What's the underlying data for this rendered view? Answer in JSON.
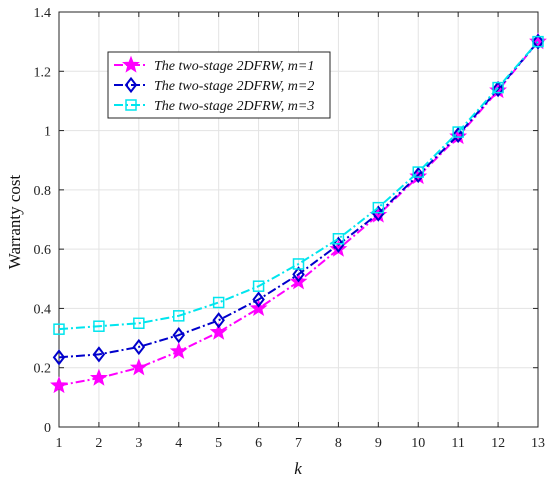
{
  "chart_data": {
    "type": "line",
    "title": "",
    "xlabel": "k",
    "ylabel": "Warranty cost",
    "x": [
      1,
      2,
      3,
      4,
      5,
      6,
      7,
      8,
      9,
      10,
      11,
      12,
      13
    ],
    "xlim": [
      1,
      13
    ],
    "ylim": [
      0,
      1.4
    ],
    "xticks": [
      "1",
      "2",
      "3",
      "4",
      "5",
      "6",
      "7",
      "8",
      "9",
      "10",
      "11",
      "12",
      "13"
    ],
    "yticks": [
      "0",
      "0.2",
      "0.4",
      "0.6",
      "0.8",
      "1",
      "1.2",
      "1.4"
    ],
    "grid": true,
    "legend_position": "upper-left",
    "series": [
      {
        "name": "The two-stage 2DFRW, m=1",
        "color": "#ff00ff",
        "marker": "star",
        "line_style": "dash-dot",
        "values": [
          0.14,
          0.165,
          0.2,
          0.255,
          0.32,
          0.4,
          0.49,
          0.6,
          0.715,
          0.845,
          0.98,
          1.135,
          1.3
        ]
      },
      {
        "name": "The two-stage 2DFRW, m=2",
        "color": "#0000cc",
        "marker": "diamond",
        "line_style": "dash-dot",
        "values": [
          0.235,
          0.245,
          0.27,
          0.31,
          0.36,
          0.43,
          0.515,
          0.615,
          0.72,
          0.85,
          0.985,
          1.14,
          1.3
        ]
      },
      {
        "name": "The two-stage 2DFRW, m=3",
        "color": "#00e5ee",
        "marker": "square",
        "line_style": "dash-dot",
        "values": [
          0.33,
          0.34,
          0.35,
          0.375,
          0.42,
          0.475,
          0.55,
          0.635,
          0.74,
          0.86,
          0.995,
          1.145,
          1.3
        ]
      }
    ]
  }
}
